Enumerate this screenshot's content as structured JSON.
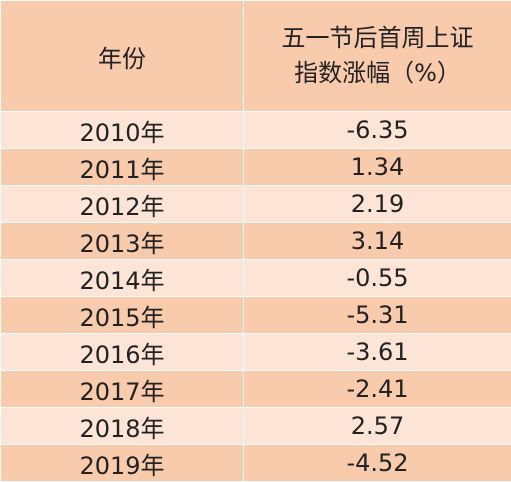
{
  "table": {
    "header": [
      "年份",
      "五一节后首周上证指数涨幅（%）"
    ],
    "rows": [
      [
        "2010年",
        "-6.35"
      ],
      [
        "2011年",
        "1.34"
      ],
      [
        "2012年",
        "2.19"
      ],
      [
        "2013年",
        "3.14"
      ],
      [
        "2014年",
        "-0.55"
      ],
      [
        "2015年",
        "-5.31"
      ],
      [
        "2016年",
        "-3.61"
      ],
      [
        "2017年",
        "-2.41"
      ],
      [
        "2018年",
        "2.57"
      ],
      [
        "2019年",
        "-4.52"
      ]
    ]
  }
}
